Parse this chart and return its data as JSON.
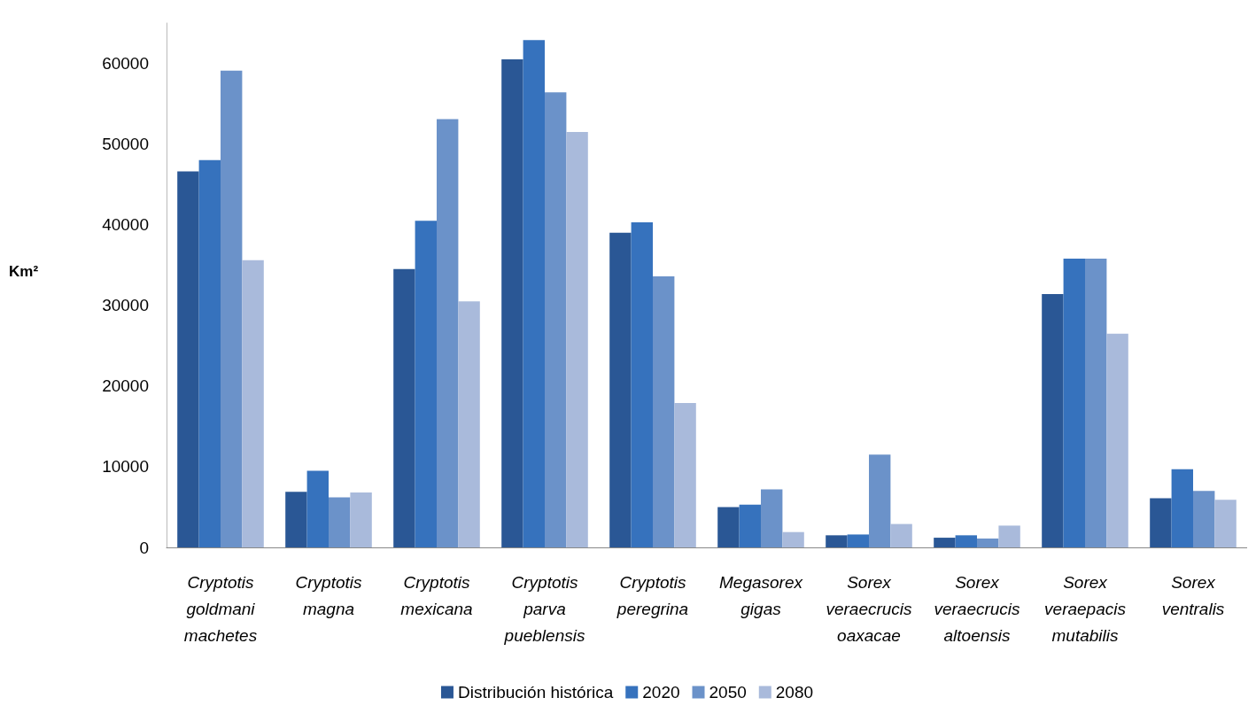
{
  "chart_data": {
    "type": "bar",
    "ylabel": "Km²",
    "categories": [
      "Cryptotis goldmani machetes",
      "Cryptotis magna",
      "Cryptotis mexicana",
      "Cryptotis parva pueblensis",
      "Cryptotis peregrina",
      "Megasorex gigas",
      "Sorex veraecrucis oaxacae",
      "Sorex veraecrucis altoensis",
      "Sorex veraepacis mutabilis",
      "Sorex ventralis"
    ],
    "series": [
      {
        "name": "Distribución histórica",
        "color": "#2a5795",
        "values": [
          46600,
          6900,
          34500,
          60500,
          39000,
          5000,
          1500,
          1200,
          31400,
          6100
        ]
      },
      {
        "name": "2020",
        "color": "#3672bd",
        "values": [
          48000,
          9500,
          40500,
          62900,
          40300,
          5300,
          1600,
          1500,
          35800,
          9700
        ]
      },
      {
        "name": "2050",
        "color": "#6b92c9",
        "values": [
          59100,
          6200,
          53100,
          56400,
          33600,
          7200,
          11500,
          1100,
          35800,
          7000
        ]
      },
      {
        "name": "2080",
        "color": "#a9badb",
        "values": [
          35600,
          6800,
          30500,
          51500,
          17900,
          1900,
          2900,
          2700,
          26500,
          5900
        ]
      }
    ],
    "ylim": [
      0,
      65000
    ],
    "yticks": [
      0,
      10000,
      20000,
      30000,
      40000,
      50000,
      60000
    ],
    "grid": false,
    "legend": "bottom"
  }
}
